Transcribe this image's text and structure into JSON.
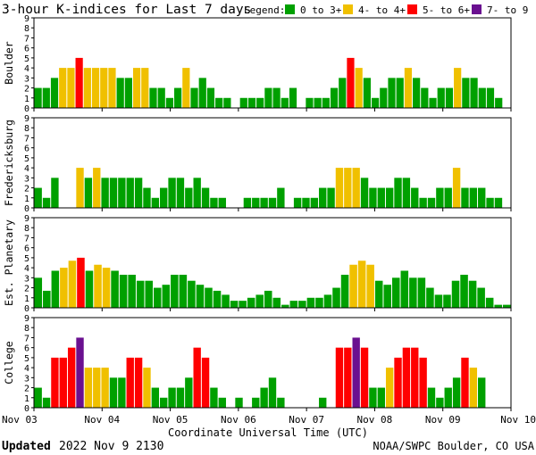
{
  "title": "3-hour K-indices for Last 7 days",
  "legend": {
    "label": "Legend:",
    "items": [
      {
        "label": "0 to 3+",
        "color": "#00a000"
      },
      {
        "label": "4- to 4+",
        "color": "#f0c000"
      },
      {
        "label": "5- to 6+",
        "color": "#ff0000"
      },
      {
        "label": "7- to 9",
        "color": "#6a1090"
      }
    ]
  },
  "x_label": "Coordinate Universal Time (UTC)",
  "footer": {
    "updated_label": "Updated",
    "updated_value": "2022 Nov  9 2130",
    "source": "NOAA/SWPC Boulder, CO USA"
  },
  "chart_data": [
    {
      "type": "bar",
      "panel": "Boulder",
      "ylabel": "Boulder",
      "ylim": [
        0,
        9
      ],
      "yticks": [
        "0",
        "1",
        "2",
        "3",
        "4",
        "5",
        "6",
        "7",
        "8",
        "9"
      ],
      "x_ticks": [
        "Nov 03",
        "Nov 04",
        "Nov 05",
        "Nov 06",
        "Nov 07",
        "Nov 08",
        "Nov 09",
        "Nov 10"
      ],
      "values": [
        2,
        2,
        3,
        4,
        4,
        5,
        4,
        4,
        4,
        4,
        3,
        3,
        4,
        4,
        2,
        2,
        1,
        2,
        4,
        2,
        3,
        2,
        1,
        1,
        0,
        1,
        1,
        1,
        2,
        2,
        1,
        2,
        0,
        1,
        1,
        1,
        2,
        3,
        5,
        4,
        3,
        1,
        2,
        3,
        3,
        4,
        3,
        2,
        1,
        2,
        2,
        4,
        3,
        3,
        2,
        2,
        1,
        0
      ]
    },
    {
      "type": "bar",
      "panel": "Fredericksburg",
      "ylabel": "Fredericksburg",
      "ylim": [
        0,
        9
      ],
      "yticks": [
        "0",
        "1",
        "2",
        "3",
        "4",
        "5",
        "6",
        "7",
        "8",
        "9"
      ],
      "x_ticks": [
        "Nov 03",
        "Nov 04",
        "Nov 05",
        "Nov 06",
        "Nov 07",
        "Nov 08",
        "Nov 09",
        "Nov 10"
      ],
      "values": [
        2,
        1,
        3,
        0,
        0,
        4,
        3,
        4,
        3,
        3,
        3,
        3,
        3,
        2,
        1,
        2,
        3,
        3,
        2,
        3,
        2,
        1,
        1,
        0,
        0,
        1,
        1,
        1,
        1,
        2,
        0,
        1,
        1,
        1,
        2,
        2,
        4,
        4,
        4,
        3,
        2,
        2,
        2,
        3,
        3,
        2,
        1,
        1,
        2,
        2,
        4,
        2,
        2,
        2,
        1,
        1,
        0
      ]
    },
    {
      "type": "bar",
      "panel": "Est. Planetary",
      "ylabel": "Est. Planetary",
      "ylim": [
        0,
        9
      ],
      "yticks": [
        "0",
        "1",
        "2",
        "3",
        "4",
        "5",
        "6",
        "7",
        "8",
        "9"
      ],
      "x_ticks": [
        "Nov 03",
        "Nov 04",
        "Nov 05",
        "Nov 06",
        "Nov 07",
        "Nov 08",
        "Nov 09",
        "Nov 10"
      ],
      "values": [
        3,
        1.7,
        3.7,
        4,
        4.7,
        5,
        3.7,
        4.3,
        4,
        3.7,
        3.3,
        3.3,
        2.7,
        2.7,
        2,
        2.3,
        3.3,
        3.3,
        2.7,
        2.3,
        2,
        1.7,
        1.3,
        0.7,
        0.7,
        1,
        1.3,
        1.7,
        1,
        0.3,
        0.7,
        0.7,
        1,
        1,
        1.3,
        2,
        3.3,
        4.3,
        4.7,
        4.3,
        2.7,
        2.3,
        3,
        3.7,
        3,
        3,
        2,
        1.3,
        1.3,
        2.7,
        3.3,
        2.7,
        2,
        1,
        0.3,
        0.3
      ]
    },
    {
      "type": "bar",
      "panel": "College",
      "ylabel": "College",
      "ylim": [
        0,
        9
      ],
      "yticks": [
        "0",
        "1",
        "2",
        "3",
        "4",
        "5",
        "6",
        "7",
        "8",
        "9"
      ],
      "x_ticks": [
        "Nov 03",
        "Nov 04",
        "Nov 05",
        "Nov 06",
        "Nov 07",
        "Nov 08",
        "Nov 09",
        "Nov 10"
      ],
      "values": [
        2,
        1,
        5,
        5,
        6,
        7,
        4,
        4,
        4,
        3,
        3,
        5,
        5,
        4,
        2,
        1,
        2,
        2,
        3,
        6,
        5,
        2,
        1,
        0,
        1,
        0,
        1,
        2,
        3,
        1,
        0,
        0,
        0,
        0,
        1,
        0,
        6,
        6,
        7,
        6,
        2,
        2,
        4,
        5,
        6,
        6,
        5,
        2,
        1,
        2,
        3,
        5,
        4,
        3,
        0,
        0,
        0
      ]
    }
  ]
}
